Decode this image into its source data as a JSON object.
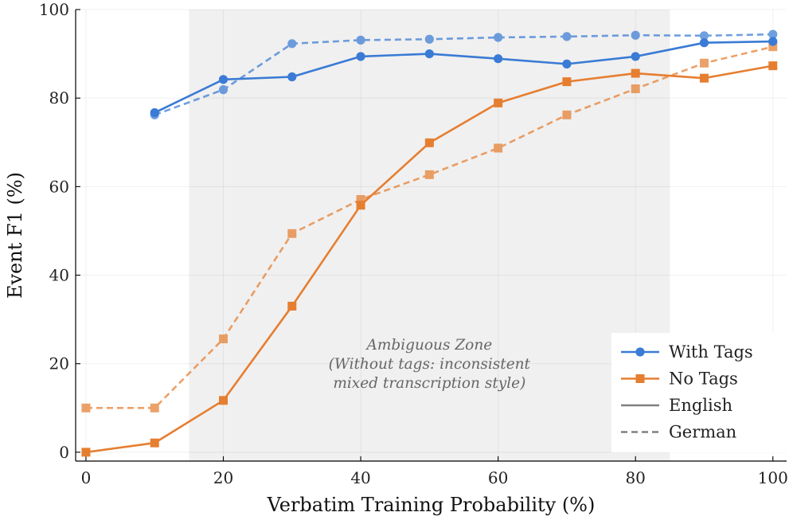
{
  "chart_data": {
    "type": "line",
    "xlabel": "Verbatim Training Probability (%)",
    "ylabel": "Event F1 (%)",
    "xlim": [
      -1.5,
      102
    ],
    "ylim": [
      -2,
      100
    ],
    "xticks": [
      0,
      20,
      40,
      60,
      80,
      100
    ],
    "yticks": [
      0,
      20,
      40,
      60,
      80,
      100
    ],
    "xtick_labels": [
      "0",
      "20",
      "40",
      "60",
      "80",
      "100"
    ],
    "ytick_labels": [
      "0",
      "20",
      "40",
      "60",
      "80",
      "100"
    ],
    "grid": true,
    "legend_position": "bottom-right",
    "shaded_region": {
      "x_start": 15,
      "x_end": 85,
      "color": "#f0f0f0",
      "label_lines": [
        "Ambiguous Zone",
        "(Without tags: inconsistent",
        "mixed transcription style)"
      ]
    },
    "series": [
      {
        "key": "with-tags-english",
        "color": "#3a7bd5",
        "style": "solid",
        "marker": "circle",
        "x": [
          10,
          20,
          30,
          40,
          50,
          60,
          70,
          80,
          90,
          100
        ],
        "values": [
          76.7,
          84.2,
          84.8,
          89.4,
          90.0,
          88.9,
          87.7,
          89.4,
          92.5,
          92.8
        ]
      },
      {
        "key": "with-tags-german",
        "color": "#3a7bd5",
        "style": "dashed",
        "marker": "circle",
        "x": [
          10,
          20,
          30,
          40,
          50,
          60,
          70,
          80,
          90,
          100
        ],
        "values": [
          76.2,
          81.9,
          92.3,
          93.1,
          93.3,
          93.7,
          93.9,
          94.2,
          94.1,
          94.4
        ]
      },
      {
        "key": "no-tags-english",
        "color": "#e67e30",
        "style": "solid",
        "marker": "square",
        "x": [
          0,
          10,
          20,
          30,
          40,
          50,
          60,
          70,
          80,
          90,
          100
        ],
        "values": [
          0.0,
          2.1,
          11.7,
          33.0,
          55.8,
          69.9,
          78.9,
          83.7,
          85.6,
          84.5,
          87.3
        ]
      },
      {
        "key": "no-tags-german",
        "color": "#e67e30",
        "style": "dashed",
        "marker": "square",
        "x": [
          0,
          10,
          20,
          30,
          40,
          50,
          60,
          70,
          80,
          90,
          100
        ],
        "values": [
          10.0,
          10.0,
          25.6,
          49.4,
          57.1,
          62.7,
          68.7,
          76.2,
          82.1,
          87.9,
          91.6
        ]
      }
    ],
    "legend": [
      {
        "label": "With Tags",
        "color": "#3a7bd5",
        "style": "solid",
        "marker": "circle"
      },
      {
        "label": "No Tags",
        "color": "#e67e30",
        "style": "solid",
        "marker": "square"
      },
      {
        "label": "English",
        "color": "#808080",
        "style": "solid",
        "marker": "none"
      },
      {
        "label": "German",
        "color": "#808080",
        "style": "dashed",
        "marker": "none"
      }
    ]
  }
}
